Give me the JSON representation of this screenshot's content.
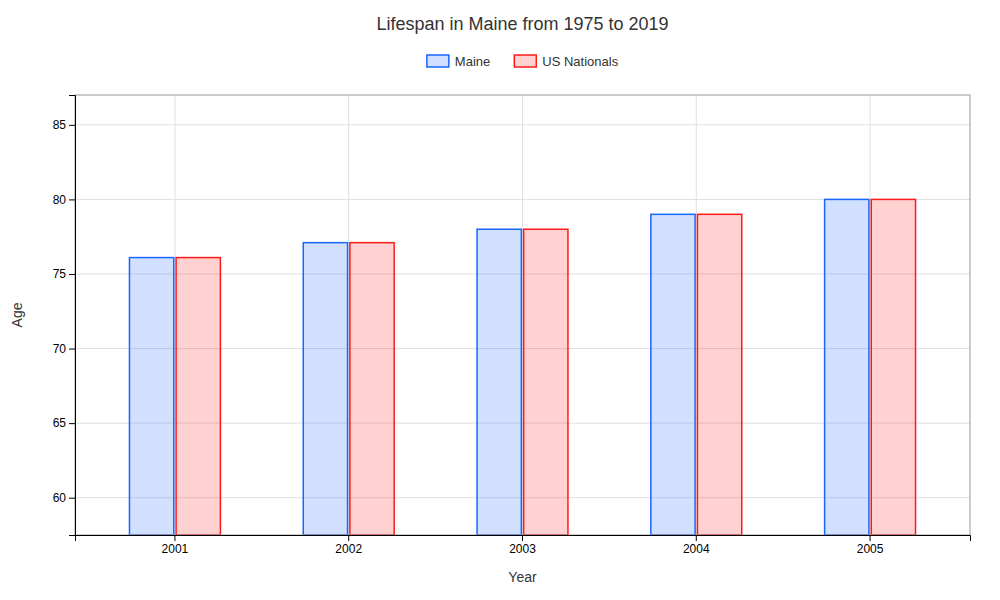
{
  "chart_data": {
    "type": "bar",
    "title": "Lifespan in Maine from 1975 to 2019",
    "xlabel": "Year",
    "ylabel": "Age",
    "categories": [
      "2001",
      "2002",
      "2003",
      "2004",
      "2005"
    ],
    "series": [
      {
        "name": "Maine",
        "color": "#1a66ff",
        "values": [
          76.1,
          77.1,
          78.0,
          79.0,
          80.0
        ]
      },
      {
        "name": "US Nationals",
        "color": "#ff1a1a",
        "values": [
          76.1,
          77.1,
          78.0,
          79.0,
          80.0
        ]
      }
    ],
    "ylim": [
      57.5,
      87
    ],
    "yticks": [
      60,
      65,
      70,
      75,
      80,
      85
    ],
    "grid": true,
    "legend": "top"
  }
}
